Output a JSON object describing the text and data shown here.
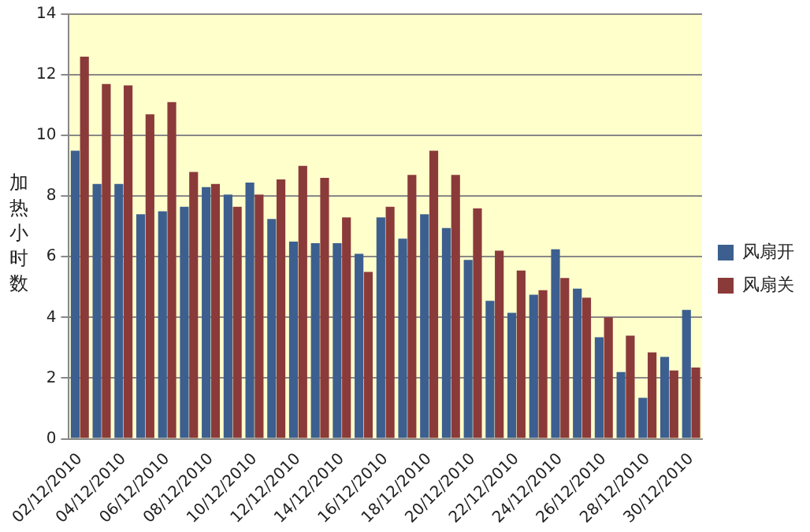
{
  "chart_data": {
    "type": "bar",
    "ylabel": "加热小时数",
    "categories": [
      "02/12/2010",
      null,
      "04/12/2010",
      null,
      "06/12/2010",
      null,
      "08/12/2010",
      null,
      "10/12/2010",
      null,
      "12/12/2010",
      null,
      "14/12/2010",
      null,
      "16/12/2010",
      null,
      "18/12/2010",
      null,
      "20/12/2010",
      null,
      "22/12/2010",
      null,
      "24/12/2010",
      null,
      "26/12/2010",
      null,
      "28/12/2010",
      null,
      "30/12/2010"
    ],
    "series": [
      {
        "name": "风扇开",
        "color": "#3c5f8f",
        "values": [
          9.5,
          8.4,
          8.4,
          7.4,
          7.5,
          7.65,
          8.3,
          8.05,
          8.45,
          7.25,
          6.5,
          6.45,
          6.45,
          6.1,
          7.3,
          6.6,
          7.4,
          6.95,
          5.9,
          4.55,
          4.15,
          4.75,
          6.25,
          4.95,
          3.35,
          2.2,
          1.35,
          2.7,
          4.25
        ]
      },
      {
        "name": "风扇关",
        "color": "#8b3a3a",
        "values": [
          12.6,
          11.7,
          11.65,
          10.7,
          11.1,
          8.8,
          8.4,
          7.65,
          8.05,
          8.55,
          9.0,
          8.6,
          7.3,
          5.5,
          7.65,
          8.7,
          9.5,
          8.7,
          7.6,
          6.2,
          5.55,
          4.9,
          5.3,
          4.65,
          4.0,
          3.4,
          2.85,
          2.25,
          2.35
        ]
      }
    ],
    "ylim": [
      0,
      14
    ],
    "yticks": [
      0,
      2,
      4,
      6,
      8,
      10,
      12,
      14
    ],
    "grid": "y",
    "legend": "right"
  }
}
